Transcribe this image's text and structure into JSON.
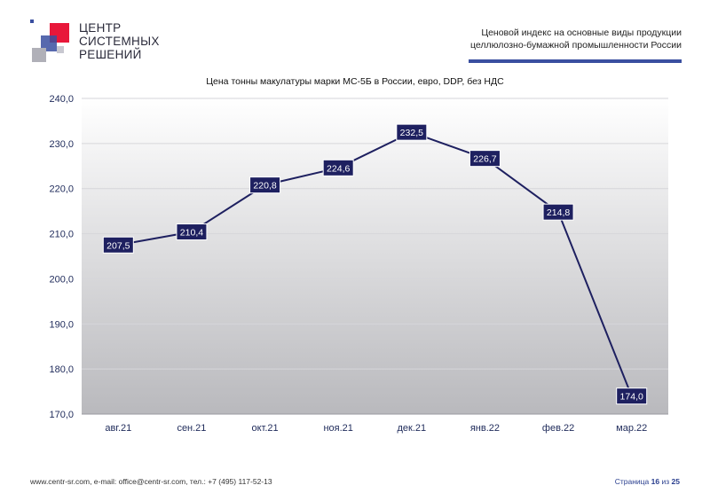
{
  "header": {
    "logo": {
      "line1": "ЦЕНТР",
      "line2": "СИСТЕМНЫХ",
      "line3": "РЕШЕНИЙ",
      "colors": {
        "red": "#e8173a",
        "blue": "#3a4fa0",
        "grey": "#b0b0b8"
      }
    },
    "doc_title_line1": "Ценовой индекс на основные виды продукции",
    "doc_title_line2": "целлюлозно-бумажной промышленности России",
    "rule_color": "#3a4fa0"
  },
  "chart_data": {
    "type": "line",
    "title": "Цена тонны макулатуры марки МС-5Б в России, евро, DDP, без НДС",
    "categories": [
      "авг.21",
      "сен.21",
      "окт.21",
      "ноя.21",
      "дек.21",
      "янв.22",
      "фев.22",
      "мар.22"
    ],
    "values": [
      207.5,
      210.4,
      220.8,
      224.6,
      232.5,
      226.7,
      214.8,
      174.0
    ],
    "value_labels": [
      "207,5",
      "210,4",
      "220,8",
      "224,6",
      "232,5",
      "226,7",
      "214,8",
      "174,0"
    ],
    "ylim": [
      170,
      240
    ],
    "yticks": [
      "170,0",
      "180,0",
      "190,0",
      "200,0",
      "210,0",
      "220,0",
      "230,0",
      "240,0"
    ],
    "grid": true,
    "line_color": "#1e2060",
    "label_bg": "#1e2060",
    "xlabel": "",
    "ylabel": ""
  },
  "footer": {
    "contacts": "www.centr-sr.com, e-mail: office@centr-sr.com, тел.: +7 (495) 117-52-13",
    "page_word": "Страница",
    "page_num": "16",
    "of_word": "из",
    "page_total": "25"
  }
}
